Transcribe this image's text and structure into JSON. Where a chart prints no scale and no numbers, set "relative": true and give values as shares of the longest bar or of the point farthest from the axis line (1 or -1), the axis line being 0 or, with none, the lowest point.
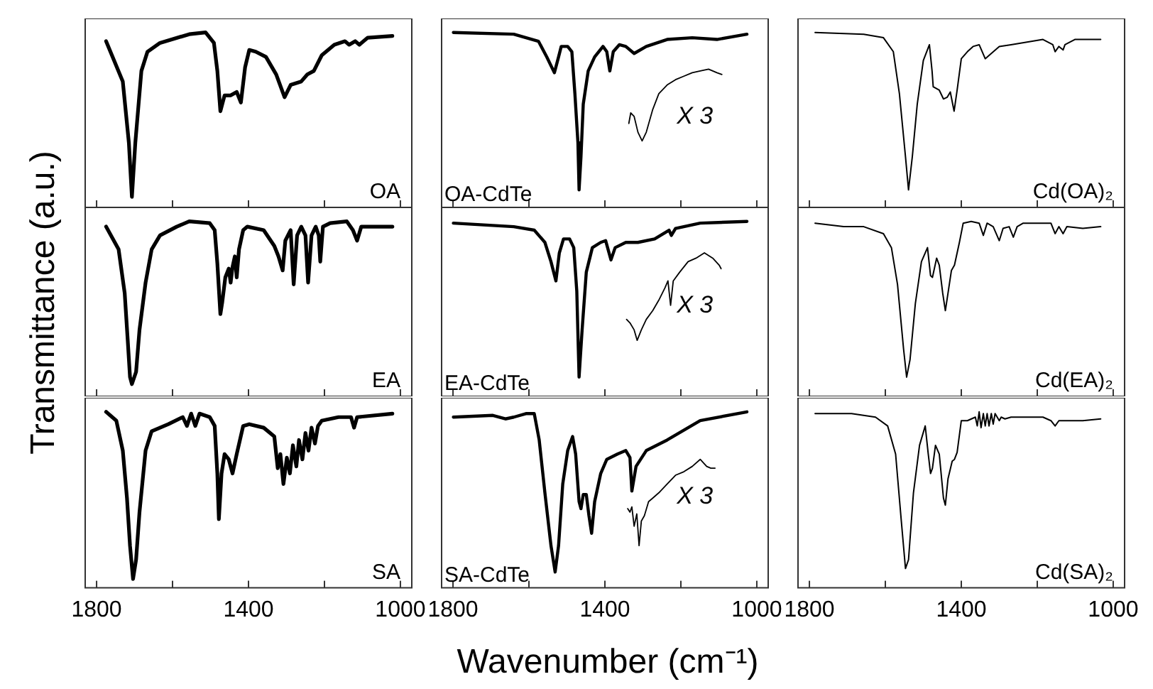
{
  "chart_data": [
    {
      "type": "line",
      "relative": true,
      "xlim": [
        1830,
        970
      ],
      "xticks": [
        {
          "value": 1800,
          "label": null
        },
        {
          "value": 1600,
          "label": null
        },
        {
          "value": 1400,
          "label": null
        },
        {
          "value": 1200,
          "label": null
        },
        {
          "value": 1000,
          "label": null
        }
      ],
      "tick_labels": false,
      "annotations": [
        "OA"
      ],
      "series": [
        {
          "color": "#000000",
          "x": [
            1775,
            1731,
            1715,
            1707,
            1698,
            1682,
            1666,
            1633,
            1556,
            1513,
            1491,
            1482,
            1474,
            1463,
            1447,
            1431,
            1420,
            1409,
            1398,
            1381,
            1354,
            1327,
            1305,
            1289,
            1261,
            1245,
            1228,
            1207,
            1174,
            1146,
            1135,
            1119,
            1108,
            1086,
            1021
          ],
          "values": [
            0.95,
            0.72,
            0.37,
            0.06,
            0.37,
            0.78,
            0.89,
            0.94,
            0.99,
            1.0,
            0.94,
            0.78,
            0.55,
            0.64,
            0.64,
            0.66,
            0.6,
            0.8,
            0.9,
            0.89,
            0.86,
            0.76,
            0.63,
            0.7,
            0.72,
            0.76,
            0.78,
            0.87,
            0.93,
            0.95,
            0.93,
            0.95,
            0.93,
            0.97,
            0.98
          ]
        }
      ]
    },
    {
      "type": "line",
      "relative": true,
      "xlim": [
        1830,
        970
      ],
      "xticks": [
        {
          "value": 1800,
          "label": null
        },
        {
          "value": 1600,
          "label": null
        },
        {
          "value": 1400,
          "label": null
        },
        {
          "value": 1200,
          "label": null
        },
        {
          "value": 1000,
          "label": null
        }
      ],
      "tick_labels": false,
      "annotations": [
        "OA-CdTe",
        "X 3"
      ],
      "series": [
        {
          "color": "#000000",
          "x": [
            1799,
            1640,
            1575,
            1553,
            1533,
            1522,
            1515,
            1498,
            1487,
            1479,
            1471,
            1468,
            1463,
            1457,
            1444,
            1427,
            1405,
            1395,
            1387,
            1378,
            1362,
            1345,
            1323,
            1291,
            1236,
            1170,
            1105,
            1026
          ],
          "values": [
            1.0,
            0.99,
            0.95,
            0.86,
            0.77,
            0.86,
            0.92,
            0.92,
            0.89,
            0.65,
            0.37,
            0.1,
            0.29,
            0.59,
            0.78,
            0.86,
            0.92,
            0.89,
            0.78,
            0.89,
            0.93,
            0.92,
            0.88,
            0.92,
            0.96,
            0.97,
            0.96,
            0.99
          ]
        },
        {
          "color": "#000000",
          "x": [
            1337,
            1332,
            1323,
            1313,
            1302,
            1291,
            1274,
            1258,
            1236,
            1214,
            1192,
            1170,
            1149,
            1127,
            1105,
            1092
          ],
          "values": [
            0.48,
            0.54,
            0.52,
            0.43,
            0.38,
            0.43,
            0.56,
            0.65,
            0.7,
            0.73,
            0.75,
            0.77,
            0.78,
            0.79,
            0.77,
            0.76
          ]
        }
      ]
    },
    {
      "type": "line",
      "relative": true,
      "xlim": [
        1830,
        970
      ],
      "xticks": [
        {
          "value": 1800,
          "label": null
        },
        {
          "value": 1600,
          "label": null
        },
        {
          "value": 1400,
          "label": null
        },
        {
          "value": 1200,
          "label": null
        },
        {
          "value": 1000,
          "label": null
        }
      ],
      "tick_labels": false,
      "annotations": [
        "Cd(OA)₂"
      ],
      "series": [
        {
          "color": "#000000",
          "x": [
            1785,
            1657,
            1605,
            1579,
            1563,
            1547,
            1539,
            1529,
            1516,
            1500,
            1484,
            1477,
            1474,
            1458,
            1447,
            1437,
            1429,
            1419,
            1411,
            1400,
            1384,
            1369,
            1353,
            1337,
            1321,
            1300,
            1269,
            1185,
            1159,
            1153,
            1143,
            1132,
            1127,
            1101,
            1033
          ],
          "values": [
            1.0,
            0.99,
            0.97,
            0.89,
            0.65,
            0.29,
            0.1,
            0.29,
            0.59,
            0.84,
            0.93,
            0.78,
            0.69,
            0.67,
            0.62,
            0.63,
            0.66,
            0.55,
            0.67,
            0.85,
            0.89,
            0.92,
            0.93,
            0.85,
            0.88,
            0.92,
            0.93,
            0.96,
            0.93,
            0.89,
            0.92,
            0.9,
            0.93,
            0.96,
            0.96
          ]
        }
      ]
    },
    {
      "type": "line",
      "relative": true,
      "ylabel": "Transmittance (a.u.)",
      "xlim": [
        1830,
        970
      ],
      "xticks": [
        {
          "value": 1800,
          "label": null
        },
        {
          "value": 1600,
          "label": null
        },
        {
          "value": 1400,
          "label": null
        },
        {
          "value": 1200,
          "label": null
        },
        {
          "value": 1000,
          "label": null
        }
      ],
      "tick_labels": false,
      "annotations": [
        "EA"
      ],
      "series": [
        {
          "color": "#000000",
          "x": [
            1775,
            1742,
            1726,
            1718,
            1712,
            1707,
            1696,
            1687,
            1671,
            1655,
            1633,
            1589,
            1556,
            1502,
            1489,
            1482,
            1474,
            1469,
            1461,
            1452,
            1447,
            1442,
            1436,
            1431,
            1425,
            1414,
            1403,
            1360,
            1332,
            1321,
            1310,
            1303,
            1289,
            1281,
            1272,
            1261,
            1250,
            1243,
            1234,
            1223,
            1215,
            1211,
            1204,
            1185,
            1141,
            1125,
            1114,
            1103,
            1075,
            1021
          ],
          "values": [
            0.97,
            0.84,
            0.59,
            0.32,
            0.11,
            0.07,
            0.14,
            0.38,
            0.65,
            0.84,
            0.92,
            0.97,
            1.0,
            0.99,
            0.95,
            0.76,
            0.47,
            0.54,
            0.68,
            0.73,
            0.65,
            0.74,
            0.8,
            0.68,
            0.84,
            0.95,
            0.97,
            0.95,
            0.86,
            0.8,
            0.72,
            0.89,
            0.95,
            0.64,
            0.92,
            0.97,
            0.92,
            0.65,
            0.92,
            0.97,
            0.92,
            0.77,
            0.97,
            0.99,
            1.0,
            0.95,
            0.89,
            0.97,
            0.97,
            0.97
          ]
        }
      ]
    },
    {
      "type": "line",
      "relative": true,
      "xlim": [
        1830,
        970
      ],
      "xticks": [
        {
          "value": 1800,
          "label": null
        },
        {
          "value": 1600,
          "label": null
        },
        {
          "value": 1400,
          "label": null
        },
        {
          "value": 1200,
          "label": null
        },
        {
          "value": 1000,
          "label": null
        }
      ],
      "tick_labels": false,
      "annotations": [
        "EA-CdTe",
        "X 3"
      ],
      "series": [
        {
          "color": "#000000",
          "x": [
            1799,
            1640,
            1586,
            1558,
            1542,
            1529,
            1520,
            1509,
            1493,
            1482,
            1474,
            1468,
            1460,
            1449,
            1433,
            1411,
            1398,
            1384,
            1373,
            1345,
            1313,
            1269,
            1231,
            1225,
            1214,
            1149,
            1026
          ],
          "values": [
            0.99,
            0.97,
            0.95,
            0.88,
            0.77,
            0.66,
            0.82,
            0.9,
            0.9,
            0.85,
            0.6,
            0.11,
            0.38,
            0.71,
            0.85,
            0.88,
            0.89,
            0.78,
            0.85,
            0.88,
            0.88,
            0.9,
            0.95,
            0.92,
            0.96,
            0.99,
            1.0
          ]
        },
        {
          "color": "#000000",
          "x": [
            1343,
            1334,
            1323,
            1315,
            1304,
            1291,
            1274,
            1258,
            1242,
            1234,
            1227,
            1220,
            1203,
            1181,
            1160,
            1138,
            1116,
            1099,
            1094
          ],
          "values": [
            0.44,
            0.42,
            0.38,
            0.32,
            0.38,
            0.44,
            0.49,
            0.55,
            0.62,
            0.66,
            0.52,
            0.66,
            0.71,
            0.77,
            0.79,
            0.82,
            0.79,
            0.75,
            0.73
          ]
        }
      ]
    },
    {
      "type": "line",
      "relative": true,
      "xlim": [
        1830,
        970
      ],
      "xticks": [
        {
          "value": 1800,
          "label": null
        },
        {
          "value": 1600,
          "label": null
        },
        {
          "value": 1400,
          "label": null
        },
        {
          "value": 1200,
          "label": null
        },
        {
          "value": 1000,
          "label": null
        }
      ],
      "tick_labels": false,
      "annotations": [
        "Cd(EA)₂"
      ],
      "series": [
        {
          "color": "#000000",
          "x": [
            1785,
            1710,
            1657,
            1605,
            1584,
            1568,
            1552,
            1544,
            1535,
            1521,
            1505,
            1489,
            1481,
            1476,
            1465,
            1458,
            1449,
            1442,
            1435,
            1426,
            1418,
            1405,
            1395,
            1374,
            1353,
            1342,
            1332,
            1316,
            1300,
            1290,
            1274,
            1263,
            1253,
            1237,
            1164,
            1153,
            1143,
            1132,
            1122,
            1080,
            1033
          ],
          "values": [
            0.99,
            0.97,
            0.97,
            0.93,
            0.85,
            0.64,
            0.27,
            0.11,
            0.21,
            0.53,
            0.77,
            0.85,
            0.69,
            0.68,
            0.79,
            0.75,
            0.59,
            0.49,
            0.59,
            0.72,
            0.75,
            0.88,
            0.99,
            1.0,
            0.99,
            0.92,
            0.99,
            0.97,
            0.89,
            0.96,
            0.97,
            0.91,
            0.97,
            0.99,
            0.99,
            0.93,
            0.97,
            0.93,
            0.97,
            0.96,
            0.97
          ]
        }
      ]
    },
    {
      "type": "line",
      "relative": true,
      "xlim": [
        1830,
        970
      ],
      "xticks": [
        1800,
        {
          "value": 1600,
          "label": null
        },
        1400,
        {
          "value": 1200,
          "label": null
        },
        1000
      ],
      "tick_labels": "x",
      "annotations": [
        "SA"
      ],
      "series": [
        {
          "color": "#000000",
          "x": [
            1775,
            1748,
            1731,
            1720,
            1712,
            1704,
            1696,
            1687,
            1671,
            1655,
            1611,
            1573,
            1562,
            1551,
            1540,
            1529,
            1502,
            1489,
            1482,
            1478,
            1471,
            1463,
            1452,
            1442,
            1431,
            1414,
            1398,
            1360,
            1332,
            1323,
            1316,
            1308,
            1299,
            1291,
            1283,
            1274,
            1267,
            1258,
            1250,
            1242,
            1234,
            1225,
            1217,
            1207,
            1163,
            1130,
            1122,
            1114,
            1021
          ],
          "values": [
            1.0,
            0.95,
            0.78,
            0.51,
            0.24,
            0.05,
            0.16,
            0.43,
            0.78,
            0.89,
            0.93,
            0.97,
            0.92,
            0.99,
            0.92,
            0.99,
            0.97,
            0.92,
            0.65,
            0.39,
            0.65,
            0.76,
            0.73,
            0.65,
            0.76,
            0.92,
            0.93,
            0.91,
            0.86,
            0.68,
            0.76,
            0.59,
            0.74,
            0.65,
            0.81,
            0.69,
            0.84,
            0.73,
            0.88,
            0.78,
            0.91,
            0.82,
            0.92,
            0.95,
            0.97,
            0.97,
            0.91,
            0.97,
            0.99
          ]
        }
      ]
    },
    {
      "type": "line",
      "relative": true,
      "xlabel": "Wavenumber (cm⁻¹)",
      "xlim": [
        1830,
        970
      ],
      "xticks": [
        1800,
        {
          "value": 1600,
          "label": null
        },
        1400,
        {
          "value": 1200,
          "label": null
        },
        1000
      ],
      "tick_labels": "x",
      "annotations": [
        "SA-CdTe",
        "X 3"
      ],
      "series": [
        {
          "color": "#000000",
          "x": [
            1799,
            1695,
            1662,
            1640,
            1608,
            1586,
            1573,
            1558,
            1542,
            1531,
            1522,
            1511,
            1498,
            1485,
            1477,
            1468,
            1463,
            1457,
            1449,
            1442,
            1435,
            1427,
            1411,
            1395,
            1367,
            1345,
            1334,
            1329,
            1318,
            1291,
            1236,
            1149,
            1026
          ],
          "values": [
            0.97,
            0.98,
            0.96,
            0.97,
            0.99,
            0.99,
            0.84,
            0.54,
            0.24,
            0.09,
            0.24,
            0.59,
            0.78,
            0.86,
            0.76,
            0.49,
            0.45,
            0.53,
            0.53,
            0.41,
            0.31,
            0.49,
            0.65,
            0.73,
            0.76,
            0.78,
            0.74,
            0.55,
            0.69,
            0.78,
            0.84,
            0.95,
            1.0
          ]
        },
        {
          "color": "#000000",
          "x": [
            1340,
            1334,
            1329,
            1323,
            1316,
            1310,
            1304,
            1296,
            1285,
            1274,
            1258,
            1236,
            1214,
            1192,
            1170,
            1149,
            1132,
            1121,
            1110
          ],
          "values": [
            0.45,
            0.43,
            0.46,
            0.35,
            0.42,
            0.24,
            0.38,
            0.41,
            0.49,
            0.51,
            0.54,
            0.59,
            0.64,
            0.66,
            0.69,
            0.73,
            0.69,
            0.68,
            0.68
          ]
        }
      ]
    },
    {
      "type": "line",
      "relative": true,
      "xlim": [
        1830,
        970
      ],
      "xticks": [
        1800,
        {
          "value": 1600,
          "label": null
        },
        1400,
        {
          "value": 1200,
          "label": null
        },
        1000
      ],
      "tick_labels": "x",
      "annotations": [
        "Cd(SA)₂"
      ],
      "series": [
        {
          "color": "#000000",
          "x": [
            1785,
            1689,
            1626,
            1594,
            1573,
            1558,
            1547,
            1539,
            1526,
            1510,
            1495,
            1487,
            1481,
            1476,
            1468,
            1458,
            1447,
            1442,
            1435,
            1424,
            1418,
            1411,
            1400,
            1384,
            1363,
            1358,
            1353,
            1348,
            1342,
            1337,
            1332,
            1327,
            1321,
            1316,
            1311,
            1300,
            1295,
            1285,
            1269,
            1216,
            1206,
            1185,
            1164,
            1153,
            1143,
            1080,
            1033
          ],
          "values": [
            0.99,
            0.99,
            0.97,
            0.92,
            0.76,
            0.38,
            0.11,
            0.16,
            0.54,
            0.81,
            0.92,
            0.76,
            0.65,
            0.68,
            0.81,
            0.76,
            0.51,
            0.47,
            0.62,
            0.72,
            0.73,
            0.77,
            0.95,
            0.95,
            0.97,
            0.92,
            1.0,
            0.91,
            0.99,
            0.92,
            0.99,
            0.92,
            0.99,
            0.93,
            0.99,
            0.95,
            0.97,
            0.96,
            0.97,
            0.97,
            0.97,
            0.97,
            0.95,
            0.92,
            0.95,
            0.95,
            0.96
          ]
        }
      ]
    }
  ]
}
